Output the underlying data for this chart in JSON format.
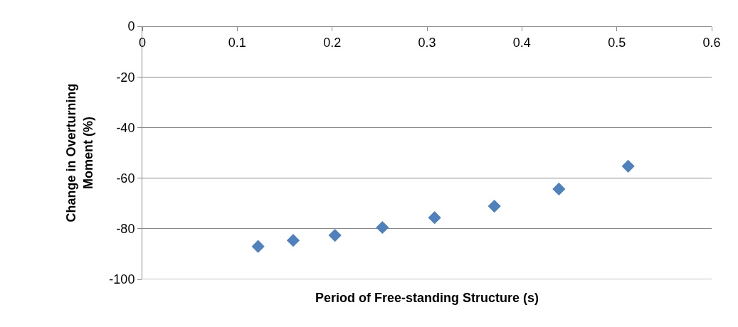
{
  "chart_data": {
    "type": "scatter",
    "xlabel": "Period of Free-standing Structure (s)",
    "ylabel": "Change in Overturning Moment (%)",
    "x": [
      0.122,
      0.159,
      0.203,
      0.253,
      0.308,
      0.371,
      0.439,
      0.512
    ],
    "series": [
      {
        "color": "#4f81bd",
        "values": [
          -87,
          -84.6,
          -82.6,
          -79.5,
          -75.6,
          -71.1,
          -64.3,
          -55.3
        ]
      }
    ],
    "xlim": [
      0,
      0.6
    ],
    "xticks": [
      0,
      0.1,
      0.2,
      0.3,
      0.4,
      0.5,
      0.6
    ],
    "ylim": [
      -100,
      0
    ],
    "yticks": [
      -100,
      -80,
      -60,
      -40,
      -20,
      0
    ],
    "grid": "y",
    "marker": "diamond"
  }
}
